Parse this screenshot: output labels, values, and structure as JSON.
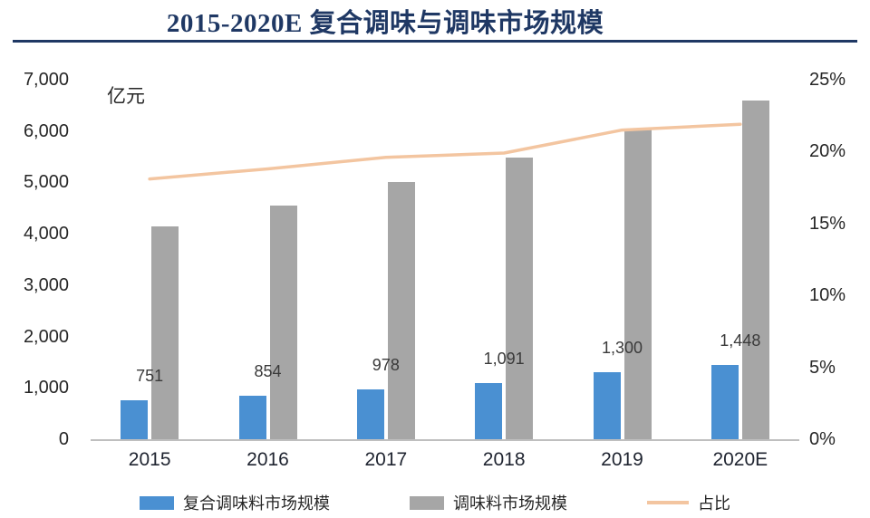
{
  "title": "2015-2020E 复合调味与调味市场规模",
  "chart_data": {
    "type": "bar",
    "subtype": "grouped bars with secondary-axis line",
    "categories": [
      "2015",
      "2016",
      "2017",
      "2018",
      "2019",
      "2020E"
    ],
    "series": [
      {
        "name": "复合调味料市场规模",
        "type": "bar",
        "axis": "left",
        "color": "#4A90D2",
        "values": [
          751,
          854,
          978,
          1091,
          1300,
          1448
        ],
        "labels": [
          "751",
          "854",
          "978",
          "1,091",
          "1,300",
          "1,448"
        ]
      },
      {
        "name": "调味料市场规模",
        "type": "bar",
        "axis": "left",
        "color": "#A6A6A6",
        "values": [
          4150,
          4550,
          5000,
          5480,
          6050,
          6600
        ]
      },
      {
        "name": "占比",
        "type": "line",
        "axis": "right",
        "color": "#F3C5A0",
        "values": [
          18.1,
          18.8,
          19.6,
          19.9,
          21.5,
          21.9
        ]
      }
    ],
    "left_axis": {
      "unit": "亿元",
      "min": 0,
      "max": 7000,
      "step": 1000,
      "ticks": [
        "0",
        "1,000",
        "2,000",
        "3,000",
        "4,000",
        "5,000",
        "6,000",
        "7,000"
      ]
    },
    "right_axis": {
      "min": 0,
      "max": 25,
      "step": 5,
      "ticks": [
        "0%",
        "5%",
        "10%",
        "15%",
        "20%",
        "25%"
      ]
    },
    "legend_position": "bottom",
    "grid": false
  },
  "colors": {
    "title": "#1F3864",
    "title_rule": "#1F3864",
    "axis_text": "#262626",
    "x_axis_text": "#1F2430",
    "bar_label": "#3A3A3A",
    "legend_text": "#262626",
    "axis_line": "#BFBFBF"
  }
}
